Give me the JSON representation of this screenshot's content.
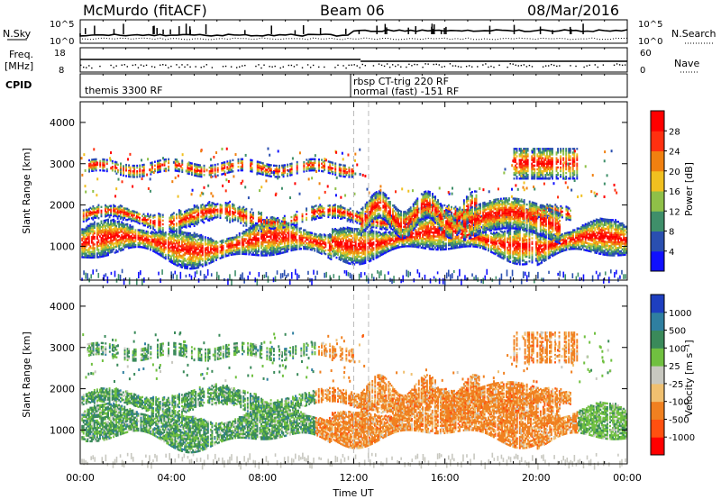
{
  "header": {
    "site": "McMurdo (fitACF)",
    "beam": "Beam 06",
    "date": "08/Mar/2016"
  },
  "panels": {
    "nsky_label": "N.Sky",
    "nsearch_label": "N.Search",
    "nsky_tick_top": "10^5",
    "nsky_tick_bottom": "10^0",
    "nsearch_tick_top": "10^5",
    "nsearch_tick_bottom": "10^0",
    "freq_label_line1": "Freq.",
    "freq_label_line2": "[MHz]",
    "freq_tick_top": "18",
    "freq_tick_bottom": "8",
    "nave_label": "Nave",
    "nave_tick_top": "60",
    "nave_tick_bottom": "0",
    "cpid_label": "CPID",
    "cpid_segments": [
      "themis 3300 RF",
      "rbsp CT-trig 220 RF",
      "normal (fast) -151 RF"
    ]
  },
  "chart_data": [
    {
      "type": "heatmap",
      "quantity": "Power",
      "ylabel": "Slant Range [km]",
      "ylim": [
        180,
        4500
      ],
      "yticks": [
        "1000",
        "2000",
        "3000",
        "4000"
      ],
      "xlim": [
        "00:00",
        "24:00"
      ],
      "colorbar_label": "Power [dB]",
      "colorbar_ticks": [
        "4",
        "8",
        "12",
        "16",
        "20",
        "24",
        "28"
      ],
      "colorbar_colors": [
        "#1010ff",
        "#2a4fb0",
        "#3f8f6a",
        "#8fc048",
        "#f0c020",
        "#f08010",
        "#ff3010",
        "#ff0000"
      ]
    },
    {
      "type": "heatmap",
      "quantity": "Velocity",
      "ylabel": "Slant Range [km]",
      "ylim": [
        180,
        4500
      ],
      "yticks": [
        "1000",
        "2000",
        "3000",
        "4000"
      ],
      "xlim": [
        "00:00",
        "24:00"
      ],
      "xticks": [
        "00:00",
        "04:00",
        "08:00",
        "12:00",
        "16:00",
        "20:00",
        "00:00"
      ],
      "xlabel": "Time UT",
      "colorbar_label": "Velocity [m s⁻¹]",
      "colorbar_ticks": [
        "1000",
        "500",
        "100",
        "25",
        "-25",
        "-100",
        "-500",
        "-1000"
      ],
      "colorbar_colors": [
        "#1e3fc0",
        "#2f7fa0",
        "#3a8a5a",
        "#70c040",
        "#c8c8c0",
        "#f0c070",
        "#f08020",
        "#ff5010",
        "#ff0000"
      ]
    }
  ]
}
